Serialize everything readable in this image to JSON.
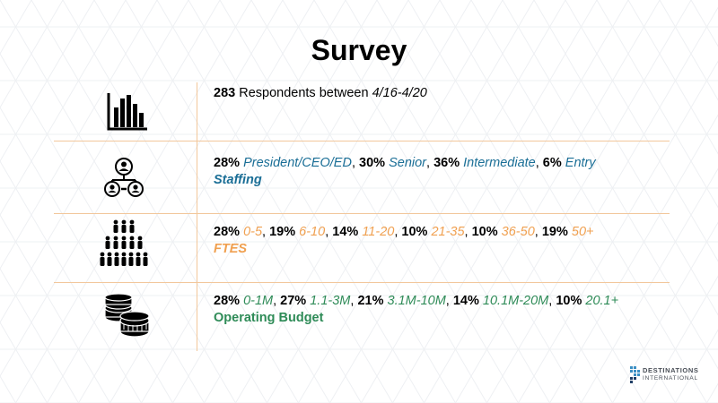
{
  "title": "Survey",
  "rows": [
    {
      "icon": "bar-chart-icon",
      "count": "283",
      "text": " Respondents between ",
      "dates": "4/16-4/20"
    },
    {
      "icon": "org-chart-icon",
      "items": [
        {
          "pct": "28%",
          "label": "President/CEO/ED"
        },
        {
          "pct": "30%",
          "label": "Senior"
        },
        {
          "pct": "36%",
          "label": "Intermediate"
        },
        {
          "pct": "6%",
          "label": "Entry"
        }
      ],
      "category": "Staffing"
    },
    {
      "icon": "people-group-icon",
      "items": [
        {
          "pct": "28%",
          "label": "0-5"
        },
        {
          "pct": "19%",
          "label": "6-10"
        },
        {
          "pct": "14%",
          "label": "11-20"
        },
        {
          "pct": "10%",
          "label": "21-35"
        },
        {
          "pct": "10%",
          "label": "36-50"
        },
        {
          "pct": "19%",
          "label": "50+"
        }
      ],
      "category": "FTES"
    },
    {
      "icon": "coin-stacks-icon",
      "items": [
        {
          "pct": "28%",
          "label": "0-1M"
        },
        {
          "pct": "27%",
          "label": "1.1-3M"
        },
        {
          "pct": "21%",
          "label": "3.1M-10M"
        },
        {
          "pct": "14%",
          "label": "10.1M-20M"
        },
        {
          "pct": "10%",
          "label": "20.1+"
        }
      ],
      "category": "Operating Budget"
    }
  ],
  "logo": {
    "line1": "DESTINATIONS",
    "line2": "INTERNATIONAL"
  },
  "colors": {
    "staffing": "#1a6e96",
    "ftes": "#f0a050",
    "budget": "#2e8b57",
    "divider": "#f2c79b"
  }
}
